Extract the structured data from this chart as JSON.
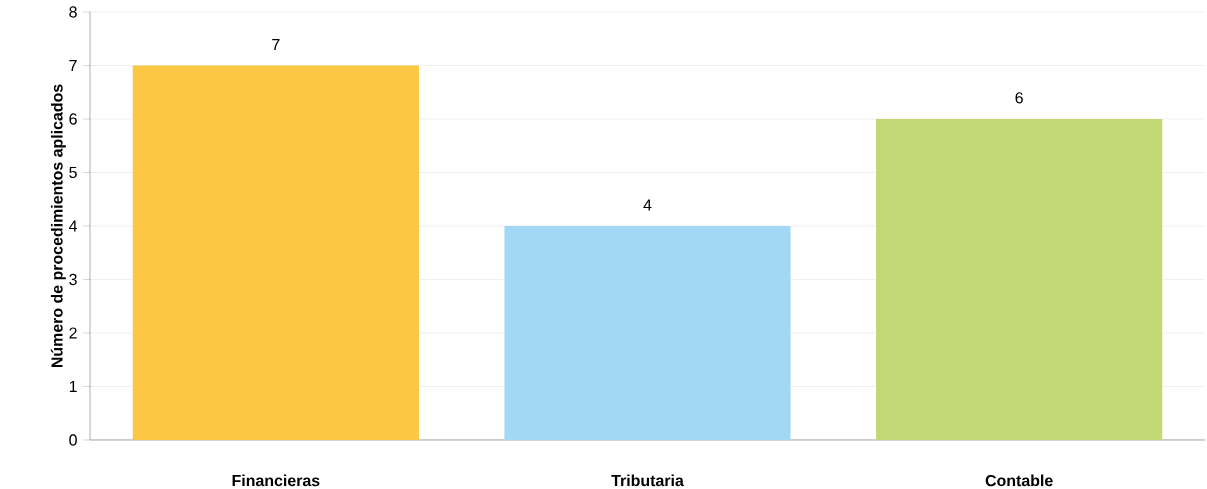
{
  "chart_data": {
    "type": "bar",
    "ylabel": "Número de procedimientos aplicados",
    "categories": [
      "Financieras",
      "Tributaria",
      "Contable"
    ],
    "values": [
      7,
      4,
      6
    ],
    "colors": [
      "#fcc844",
      "#a2d8f4",
      "#c2d875"
    ],
    "ylim": [
      0,
      8
    ],
    "yticks": [
      0,
      1,
      2,
      3,
      4,
      5,
      6,
      7,
      8
    ],
    "grid": "y",
    "data_labels": true
  }
}
